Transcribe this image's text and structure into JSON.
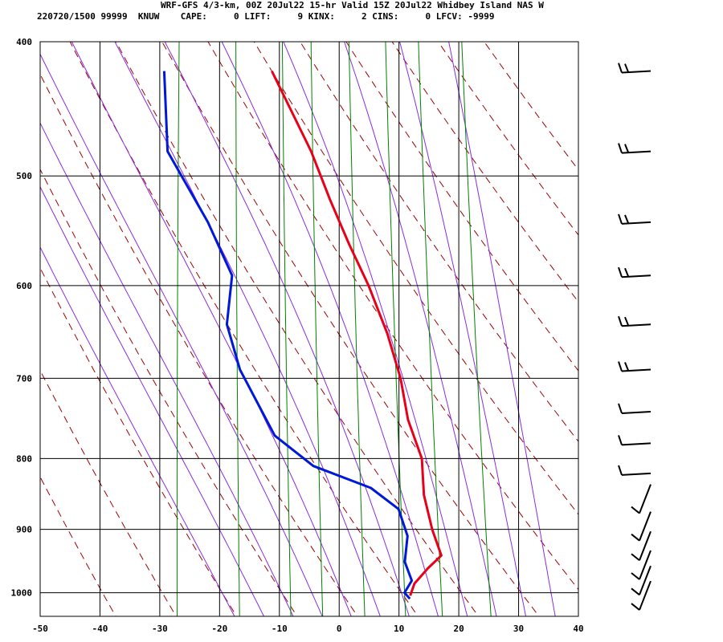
{
  "header": {
    "line1": "WRF-GFS 4/3-km, 00Z 20Jul22 15-hr Valid 15Z 20Jul22 Whidbey Island NAS W",
    "line2": "220720/1500 99999  KNUW    CAPE:     0 LIFT:     9 KINX:     2 CINS:     0 LFCV: -9999"
  },
  "colors": {
    "temperature": "#e8001a",
    "dewpoint": "#0018d8",
    "dry_adiabat": "#a00000",
    "moist_adiabat": "#8a2be2",
    "mixing_ratio": "#008000",
    "grid": "#000000"
  },
  "chart_data": {
    "type": "skew-t",
    "x_axis": {
      "range": [
        -50,
        40
      ],
      "ticks": [
        -50,
        -40,
        -30,
        -20,
        -10,
        0,
        10,
        20,
        30,
        40
      ]
    },
    "y_axis": {
      "range": [
        1040,
        400
      ],
      "scale": "log",
      "ticks": [
        400,
        500,
        600,
        700,
        800,
        900,
        1000
      ]
    },
    "series": [
      {
        "kind": "temperature",
        "points": [
          {
            "p": 420,
            "x": -21
          },
          {
            "p": 480,
            "x": -13
          },
          {
            "p": 520,
            "x": -9
          },
          {
            "p": 560,
            "x": -5
          },
          {
            "p": 600,
            "x": -1
          },
          {
            "p": 650,
            "x": 3
          },
          {
            "p": 700,
            "x": 6
          },
          {
            "p": 750,
            "x": 8
          },
          {
            "p": 800,
            "x": 11
          },
          {
            "p": 850,
            "x": 12
          },
          {
            "p": 900,
            "x": 14
          },
          {
            "p": 940,
            "x": 16
          },
          {
            "p": 960,
            "x": 14
          },
          {
            "p": 985,
            "x": 12
          },
          {
            "p": 1005,
            "x": 11.5
          }
        ]
      },
      {
        "kind": "dewpoint",
        "points": [
          {
            "p": 420,
            "x": -39
          },
          {
            "p": 480,
            "x": -37
          },
          {
            "p": 540,
            "x": -29
          },
          {
            "p": 590,
            "x": -24
          },
          {
            "p": 640,
            "x": -24
          },
          {
            "p": 690,
            "x": -21
          },
          {
            "p": 770,
            "x": -14
          },
          {
            "p": 810,
            "x": -7
          },
          {
            "p": 840,
            "x": 3
          },
          {
            "p": 870,
            "x": 8
          },
          {
            "p": 910,
            "x": 10
          },
          {
            "p": 950,
            "x": 10
          },
          {
            "p": 980,
            "x": 11.5
          },
          {
            "p": 1000,
            "x": 10.5
          },
          {
            "p": 1010,
            "x": 11.5
          }
        ]
      }
    ],
    "dry_adiabats_C": [
      -40,
      -30,
      -20,
      -10,
      0,
      10,
      20,
      30,
      40,
      50,
      60,
      70,
      80,
      90,
      100
    ],
    "moist_adiabats_C": [
      -20,
      -15,
      -10,
      -5,
      0,
      5,
      10,
      15,
      20,
      25,
      30,
      35
    ],
    "mixing_ratio_lines": [
      0.4,
      1,
      2,
      3,
      5,
      8,
      12,
      20
    ],
    "wind_barb_levels": [
      420,
      480,
      540,
      590,
      640,
      690,
      740,
      780,
      820,
      860,
      900,
      930,
      960,
      985,
      1010
    ]
  }
}
